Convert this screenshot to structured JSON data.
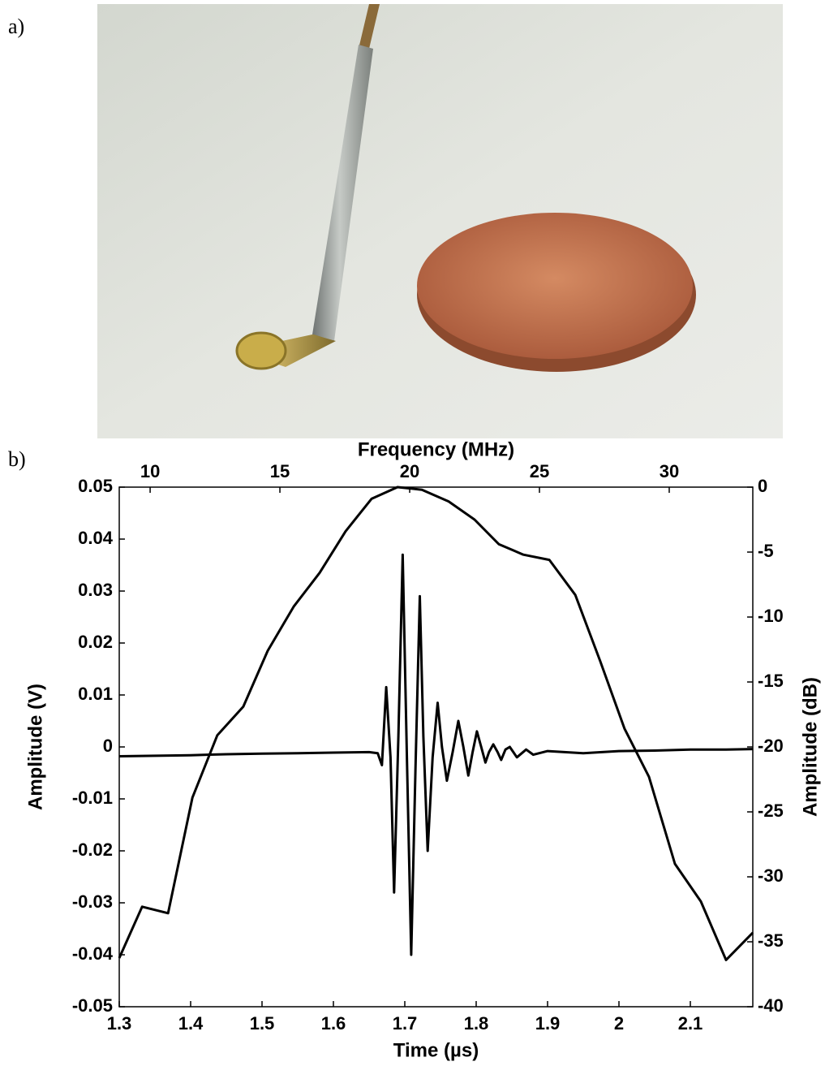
{
  "panel_labels": [
    "a)",
    "b)"
  ],
  "chart_data": [
    {
      "type": "line",
      "xlabel": "Time (µs)",
      "ylabel": "Amplitude (V)",
      "xaxis": "bottom",
      "yaxis": "left",
      "color": "#000000",
      "xlim": [
        1.3,
        2.1875
      ],
      "xticks": [
        1.3,
        1.4,
        1.5,
        1.6,
        1.7,
        1.8,
        1.9,
        2,
        2.1
      ],
      "ylim": [
        -0.05,
        0.05
      ],
      "yticks": [
        0.05,
        0.04,
        0.03,
        0.02,
        0.01,
        0,
        -0.01,
        -0.02,
        -0.03,
        -0.04,
        -0.05
      ],
      "x": [
        1.3,
        1.35,
        1.4,
        1.45,
        1.5,
        1.55,
        1.6,
        1.65,
        1.662,
        1.668,
        1.674,
        1.68,
        1.685,
        1.691,
        1.697,
        1.703,
        1.709,
        1.715,
        1.721,
        1.726,
        1.732,
        1.739,
        1.746,
        1.752,
        1.759,
        1.767,
        1.775,
        1.782,
        1.789,
        1.795,
        1.801,
        1.807,
        1.813,
        1.818,
        1.824,
        1.83,
        1.835,
        1.841,
        1.847,
        1.852,
        1.857,
        1.87,
        1.88,
        1.9,
        1.95,
        2.0,
        2.05,
        2.1,
        2.15,
        2.1875
      ],
      "values": [
        -0.0018,
        -0.0017,
        -0.0016,
        -0.0014,
        -0.0013,
        -0.0012,
        -0.0011,
        -0.001,
        -0.0012,
        -0.0035,
        0.0115,
        -0.002,
        -0.028,
        0.002,
        0.037,
        -0.002,
        -0.04,
        -0.004,
        0.029,
        0.002,
        -0.02,
        -0.002,
        0.0085,
        0,
        -0.0065,
        -0.001,
        0.005,
        0,
        -0.0055,
        -0.001,
        0.003,
        0,
        -0.003,
        -0.001,
        0.0005,
        -0.001,
        -0.0025,
        -0.0005,
        0,
        -0.001,
        -0.002,
        -0.0005,
        -0.0015,
        -0.0008,
        -0.0012,
        -0.0008,
        -0.0007,
        -0.0005,
        -0.0005,
        -0.0004
      ]
    },
    {
      "type": "line",
      "xlabel": "Frequency (MHz)",
      "ylabel": "Amplitude (dB)",
      "xaxis": "top",
      "yaxis": "right",
      "color": "#000000",
      "xlim": [
        8.81,
        33.22
      ],
      "xticks": [
        10,
        15,
        20,
        25,
        30
      ],
      "ylim": [
        -40,
        0
      ],
      "yticks": [
        0,
        -5,
        -10,
        -15,
        -20,
        -25,
        -30,
        -35,
        -40
      ],
      "x": [
        8.81,
        9.69,
        10.69,
        11.63,
        12.59,
        13.59,
        14.53,
        15.53,
        16.53,
        17.53,
        18.53,
        19.53,
        20.47,
        21.5,
        22.5,
        23.44,
        24.38,
        25.38,
        26.38,
        27.34,
        28.28,
        29.22,
        30.22,
        31.22,
        32.19,
        33.22
      ],
      "values": [
        -36.25,
        -32.3,
        -32.8,
        -23.9,
        -19.1,
        -16.9,
        -12.6,
        -9.2,
        -6.6,
        -3.4,
        -0.9,
        0,
        -0.2,
        -1.1,
        -2.5,
        -4.4,
        -5.2,
        -5.6,
        -8.3,
        -13.4,
        -18.6,
        -22.3,
        -29,
        -31.9,
        -36.4,
        -34.3
      ]
    }
  ]
}
